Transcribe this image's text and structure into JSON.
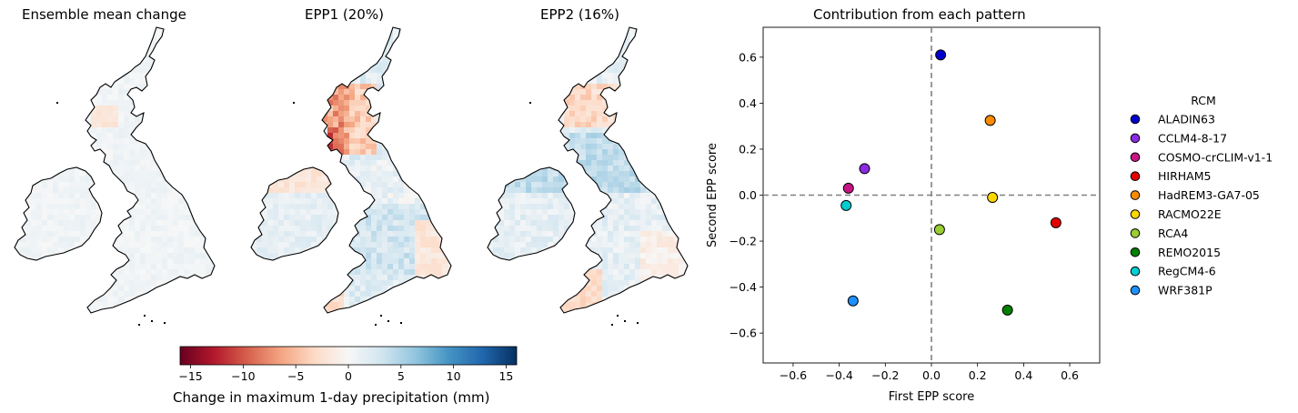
{
  "maps": [
    {
      "title": "Ensemble mean change",
      "variant": "mean"
    },
    {
      "title": "EPP1 (20%)",
      "variant": "epp1"
    },
    {
      "title": "EPP2 (16%)",
      "variant": "epp2"
    }
  ],
  "colorbar": {
    "label": "Change in maximum 1-day precipitation (mm)",
    "min": -16,
    "max": 16,
    "ticks": [
      "-15",
      "-10",
      "-5",
      "0",
      "5",
      "10",
      "15"
    ],
    "tick_values": [
      -15,
      -10,
      -5,
      0,
      5,
      10,
      15
    ],
    "colormap": "RdBu",
    "colors": [
      "#67001f",
      "#b2182b",
      "#d6604d",
      "#f4a582",
      "#fddbc7",
      "#f7f7f7",
      "#d1e5f0",
      "#92c5de",
      "#4393c3",
      "#2166ac",
      "#053061"
    ]
  },
  "chart_data": {
    "type": "scatter",
    "title": "Contribution from each pattern",
    "xlabel": "First EPP score",
    "ylabel": "Second EPP score",
    "xlim": [
      -0.73,
      0.73
    ],
    "ylim": [
      -0.73,
      0.73
    ],
    "xticks": [
      -0.6,
      -0.4,
      -0.2,
      0.0,
      0.2,
      0.4,
      0.6
    ],
    "yticks": [
      -0.6,
      -0.4,
      -0.2,
      0.0,
      0.2,
      0.4,
      0.6
    ],
    "xtick_labels": [
      "−0.6",
      "−0.4",
      "−0.2",
      "0.0",
      "0.2",
      "0.4",
      "0.6"
    ],
    "ytick_labels": [
      "−0.6",
      "−0.4",
      "−0.2",
      "0.0",
      "0.2",
      "0.4",
      "0.6"
    ],
    "reference_lines": {
      "x": 0.0,
      "y": 0.0,
      "style": "dashed",
      "color": "#808080"
    },
    "grid": false,
    "legend_title": "RCM",
    "legend_position": "outside-right",
    "series": [
      {
        "name": "ALADIN63",
        "color": "#0000cd",
        "x": 0.04,
        "y": 0.61
      },
      {
        "name": "CCLM4-8-17",
        "color": "#8a2be2",
        "x": -0.29,
        "y": 0.115
      },
      {
        "name": "COSMO-crCLIM-v1-1",
        "color": "#c71585",
        "x": -0.36,
        "y": 0.03
      },
      {
        "name": "HIRHAM5",
        "color": "#e50000",
        "x": 0.54,
        "y": -0.12
      },
      {
        "name": "HadREM3-GA7-05",
        "color": "#ff8c00",
        "x": 0.255,
        "y": 0.325
      },
      {
        "name": "RACMO22E",
        "color": "#ffd700",
        "x": 0.265,
        "y": -0.01
      },
      {
        "name": "RCA4",
        "color": "#9acd32",
        "x": 0.035,
        "y": -0.15
      },
      {
        "name": "REMO2015",
        "color": "#008000",
        "x": 0.33,
        "y": -0.5
      },
      {
        "name": "RegCM4-6",
        "color": "#00ced1",
        "x": -0.37,
        "y": -0.045
      },
      {
        "name": "WRF381P",
        "color": "#1e90ff",
        "x": -0.34,
        "y": -0.46
      }
    ]
  }
}
